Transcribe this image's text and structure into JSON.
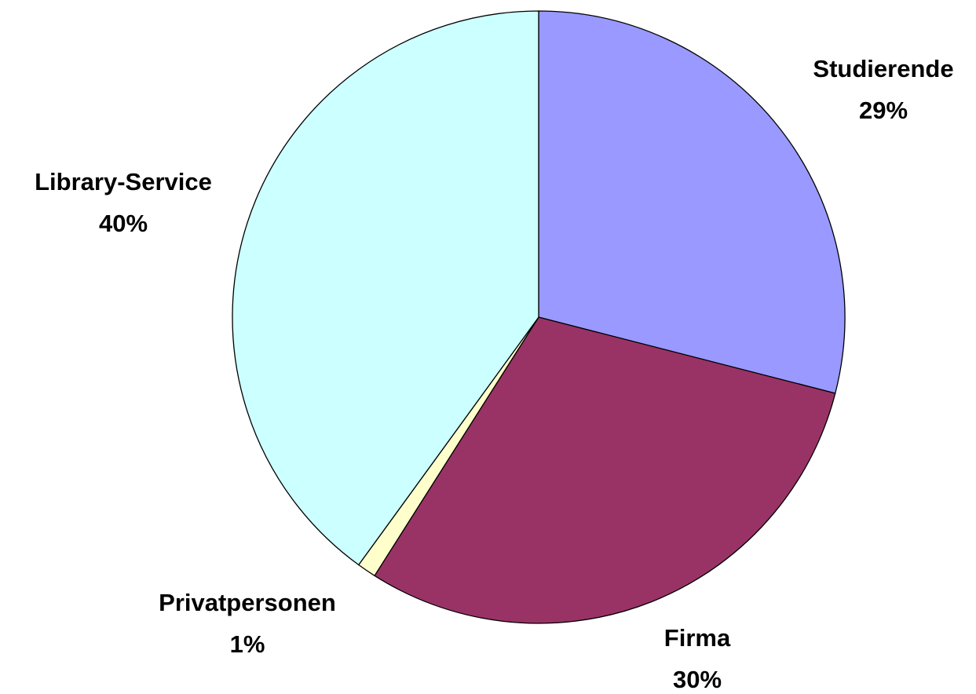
{
  "chart_data": {
    "type": "pie",
    "categories": [
      "Studierende",
      "Firma",
      "Privatpersonen",
      "Library-Service"
    ],
    "values": [
      29,
      30,
      1,
      40
    ],
    "value_labels": [
      "29%",
      "30%",
      "1%",
      "40%"
    ],
    "colors": [
      "#9999ff",
      "#993366",
      "#ffffcc",
      "#ccffff"
    ]
  }
}
